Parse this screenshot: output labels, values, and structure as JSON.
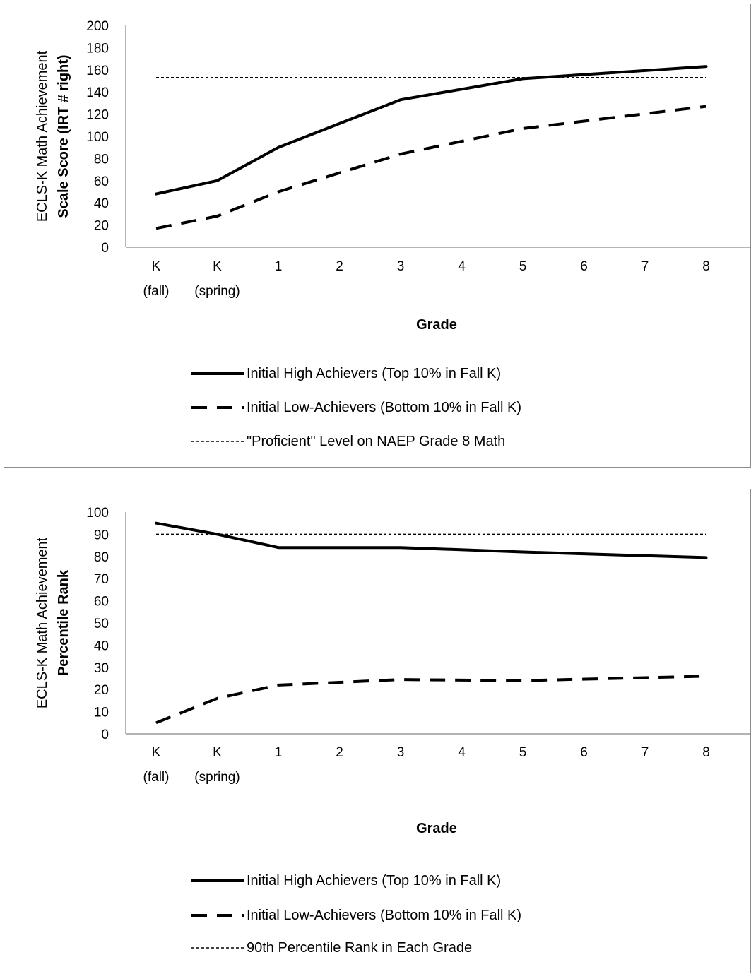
{
  "chart_data": [
    {
      "type": "line",
      "title": "",
      "ylabel_line1": "ECLS-K Math Achievement",
      "ylabel_line2": "Scale Score (IRT # right)",
      "xlabel": "Grade",
      "ylim": [
        0,
        200
      ],
      "yticks": [
        "0",
        "20",
        "40",
        "60",
        "80",
        "100",
        "120",
        "140",
        "160",
        "180",
        "200"
      ],
      "categories": [
        {
          "line1": "K",
          "line2": "(fall)"
        },
        {
          "line1": "K",
          "line2": "(spring)"
        },
        {
          "line1": "1",
          "line2": ""
        },
        {
          "line1": "2",
          "line2": ""
        },
        {
          "line1": "3",
          "line2": ""
        },
        {
          "line1": "4",
          "line2": ""
        },
        {
          "line1": "5",
          "line2": ""
        },
        {
          "line1": "6",
          "line2": ""
        },
        {
          "line1": "7",
          "line2": ""
        },
        {
          "line1": "8",
          "line2": ""
        }
      ],
      "series": [
        {
          "name": "Initial High Achievers (Top 10% in Fall K)",
          "style": "solid",
          "points": [
            [
              0,
              48
            ],
            [
              1,
              60
            ],
            [
              2,
              90
            ],
            [
              4,
              133
            ],
            [
              6,
              152
            ],
            [
              9,
              163
            ]
          ]
        },
        {
          "name": "Initial Low-Achievers (Bottom 10% in Fall K)",
          "style": "dashed",
          "points": [
            [
              0,
              17
            ],
            [
              1,
              28
            ],
            [
              2,
              50
            ],
            [
              4,
              84
            ],
            [
              6,
              107
            ],
            [
              9,
              127
            ]
          ]
        },
        {
          "name": "\"Proficient\" Level on NAEP Grade 8 Math",
          "style": "dotted",
          "points": [
            [
              0,
              153
            ],
            [
              9,
              153
            ]
          ]
        }
      ],
      "legend_position": "bottom",
      "grid": false
    },
    {
      "type": "line",
      "title": "",
      "ylabel_line1": "ECLS-K Math Achievement",
      "ylabel_line2": "Percentile Rank",
      "xlabel": "Grade",
      "ylim": [
        0,
        100
      ],
      "yticks": [
        "0",
        "10",
        "20",
        "30",
        "40",
        "50",
        "60",
        "70",
        "80",
        "90",
        "100"
      ],
      "categories": [
        {
          "line1": "K",
          "line2": "(fall)"
        },
        {
          "line1": "K",
          "line2": "(spring)"
        },
        {
          "line1": "1",
          "line2": ""
        },
        {
          "line1": "2",
          "line2": ""
        },
        {
          "line1": "3",
          "line2": ""
        },
        {
          "line1": "4",
          "line2": ""
        },
        {
          "line1": "5",
          "line2": ""
        },
        {
          "line1": "6",
          "line2": ""
        },
        {
          "line1": "7",
          "line2": ""
        },
        {
          "line1": "8",
          "line2": ""
        }
      ],
      "series": [
        {
          "name": "Initial High Achievers (Top 10% in Fall K)",
          "style": "solid",
          "points": [
            [
              0,
              95
            ],
            [
              1,
              90
            ],
            [
              2,
              84
            ],
            [
              4,
              84
            ],
            [
              6,
              82
            ],
            [
              9,
              79.5
            ]
          ]
        },
        {
          "name": "Initial Low-Achievers (Bottom 10% in Fall K)",
          "style": "dashed",
          "points": [
            [
              0,
              5
            ],
            [
              1,
              16
            ],
            [
              2,
              22
            ],
            [
              4,
              24.5
            ],
            [
              6,
              24
            ],
            [
              9,
              26
            ]
          ]
        },
        {
          "name": "90th Percentile Rank in Each Grade",
          "style": "dotted",
          "points": [
            [
              0,
              90
            ],
            [
              9,
              90
            ]
          ]
        }
      ],
      "legend_position": "bottom",
      "grid": false
    }
  ]
}
